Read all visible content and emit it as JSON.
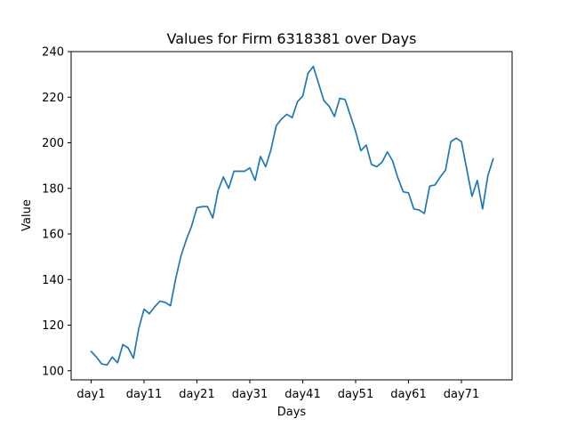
{
  "chart_data": {
    "type": "line",
    "title": "Values for Firm 6318381 over Days",
    "xlabel": "Days",
    "ylabel": "Value",
    "x_tick_labels": [
      "day1",
      "day11",
      "day21",
      "day31",
      "day41",
      "day51",
      "day61",
      "day71"
    ],
    "y_tick_labels": [
      "100",
      "120",
      "140",
      "160",
      "180",
      "200",
      "220",
      "240"
    ],
    "ylim": [
      96,
      240
    ],
    "grid": false,
    "series_color": "#1f77b4",
    "series": [
      {
        "values": [
          108.5,
          106,
          103,
          102.5,
          106,
          103.5,
          111.5,
          110,
          105.5,
          118.5,
          127,
          125,
          128,
          130.5,
          130,
          128.5,
          140.5,
          150.5,
          157.5,
          163.5,
          171.5,
          172,
          172,
          167,
          179,
          185,
          180,
          187.5,
          187.5,
          187.5,
          189,
          183.5,
          194,
          189.5,
          197,
          207.5,
          210.5,
          212.5,
          211,
          218,
          220.5,
          230.5,
          233.5,
          226,
          218.5,
          216,
          211.5,
          219.5,
          219,
          212,
          205,
          196.5,
          199,
          190.5,
          189.5,
          191.5,
          196,
          192,
          184.5,
          178.5,
          178,
          171,
          170.5,
          169,
          181,
          181.5,
          185,
          188,
          200.5,
          202,
          200.5,
          188.5,
          176.5,
          183.5,
          171,
          185.5,
          193
        ]
      }
    ]
  }
}
